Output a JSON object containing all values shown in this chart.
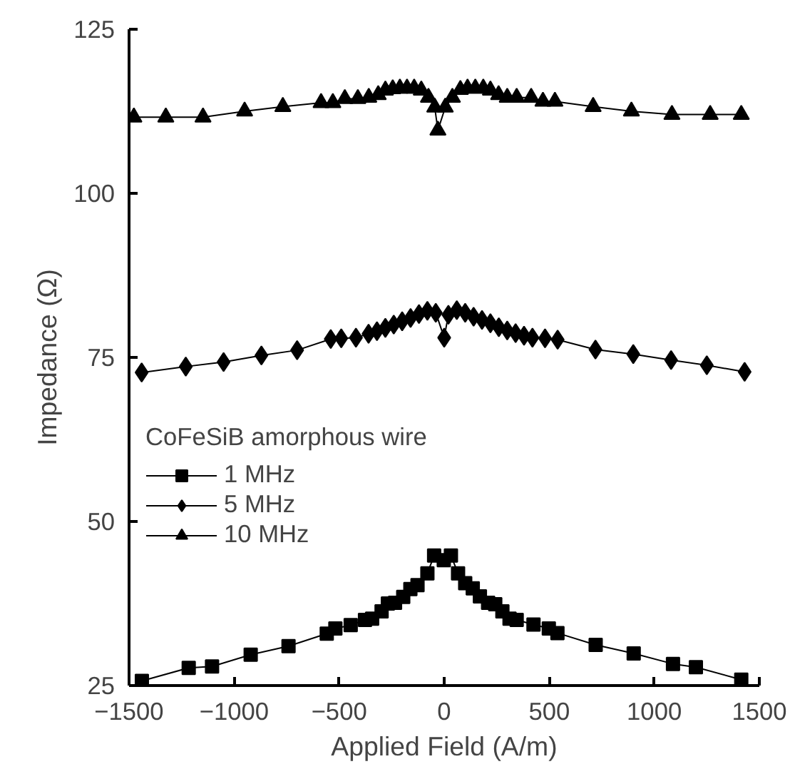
{
  "chart_data": {
    "type": "line",
    "xlabel": "Applied Field (A/m)",
    "ylabel": "Impedance (Ω)",
    "legend_title": "CoFeSiB amorphous wire",
    "legend": "left",
    "grid": false,
    "line_style": "solid",
    "xlim": [
      -1500,
      1500
    ],
    "ylim": [
      25,
      125
    ],
    "xticks": [
      -1500,
      -1000,
      -500,
      0,
      500,
      1000,
      1500
    ],
    "yticks": [
      25,
      50,
      75,
      100,
      125
    ],
    "series": [
      {
        "name": "1 MHz",
        "color": "#000000",
        "marker": "square",
        "x": [
          -1439,
          -1216,
          -1105,
          -921,
          -741,
          -559,
          -518,
          -445,
          -377,
          -343,
          -298,
          -268,
          -234,
          -195,
          -161,
          -127,
          -80,
          -48,
          -2,
          32,
          66,
          100,
          136,
          170,
          209,
          243,
          277,
          311,
          345,
          425,
          498,
          539,
          721,
          902,
          1089,
          1198,
          1414
        ],
        "values": [
          25.7,
          27.7,
          27.9,
          29.7,
          31.0,
          32.9,
          33.7,
          34.2,
          35.0,
          35.2,
          36.3,
          37.5,
          37.6,
          38.5,
          39.7,
          40.3,
          42.1,
          44.8,
          44.1,
          44.8,
          42.1,
          40.6,
          39.8,
          38.6,
          37.6,
          37.4,
          36.3,
          35.2,
          35.0,
          34.3,
          33.7,
          33.0,
          31.2,
          29.9,
          28.3,
          27.8,
          25.9
        ]
      },
      {
        "name": "5 MHz",
        "color": "#000000",
        "marker": "diamond",
        "x": [
          -1440,
          -1230,
          -1050,
          -870,
          -700,
          -540,
          -490,
          -420,
          -360,
          -320,
          -280,
          -240,
          -200,
          -160,
          -120,
          -80,
          -40,
          0,
          20,
          60,
          100,
          140,
          180,
          220,
          260,
          300,
          340,
          380,
          420,
          480,
          540,
          720,
          900,
          1080,
          1250,
          1430
        ],
        "values": [
          72.7,
          73.6,
          74.3,
          75.3,
          76.1,
          77.8,
          77.9,
          78.0,
          78.6,
          79.0,
          79.5,
          80.0,
          80.5,
          81.0,
          81.6,
          82.1,
          81.8,
          78.0,
          81.5,
          82.2,
          81.8,
          81.2,
          80.7,
          80.2,
          79.6,
          79.1,
          78.7,
          78.3,
          78.0,
          77.9,
          77.7,
          76.2,
          75.5,
          74.6,
          73.8,
          72.8
        ]
      },
      {
        "name": "10 MHz",
        "color": "#000000",
        "marker": "triangle",
        "x": [
          -1477,
          -1325,
          -1148,
          -950,
          -768,
          -586,
          -530,
          -473,
          -411,
          -359,
          -314,
          -280,
          -245,
          -211,
          -177,
          -143,
          -109,
          -75,
          -45,
          -30,
          5,
          39,
          77,
          111,
          148,
          186,
          220,
          259,
          300,
          345,
          414,
          470,
          527,
          709,
          891,
          1084,
          1266,
          1414
        ],
        "values": [
          111.6,
          111.6,
          111.6,
          112.5,
          113.2,
          113.8,
          113.8,
          114.4,
          114.4,
          114.6,
          115.0,
          115.7,
          115.9,
          116.0,
          116.0,
          116.0,
          115.7,
          114.6,
          113.1,
          109.6,
          113.1,
          114.6,
          115.8,
          116.0,
          116.0,
          116.0,
          115.7,
          115.0,
          114.6,
          114.6,
          114.6,
          114.0,
          114.0,
          113.2,
          112.5,
          112.0,
          112.0,
          112.0
        ]
      }
    ]
  }
}
